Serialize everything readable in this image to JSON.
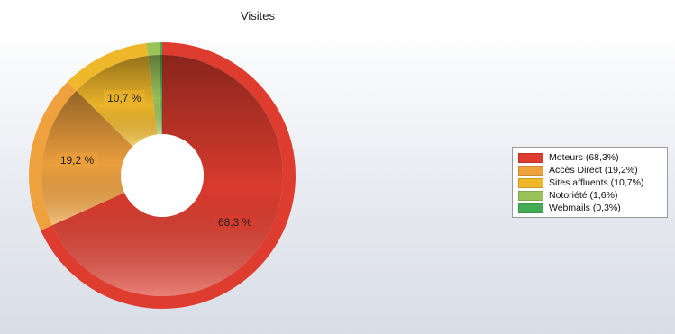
{
  "title": "Visites",
  "chart_data": {
    "type": "pie",
    "style": "donut",
    "series": [
      {
        "name": "Moteurs",
        "value": 68.3,
        "color": "#dd3c2e",
        "label": "68,3 %",
        "legend": "Moteurs  (68,3%)"
      },
      {
        "name": "Accès Direct",
        "value": 19.2,
        "color": "#efa13e",
        "label": "19,2 %",
        "legend": "Accès Direct  (19,2%)"
      },
      {
        "name": "Sites affluents",
        "value": 10.7,
        "color": "#efb72a",
        "label": "10,7 %",
        "legend": "Sites affluents  (10,7%)"
      },
      {
        "name": "Notoriété",
        "value": 1.6,
        "color": "#9cc35a",
        "label": "",
        "legend": "Notoriété  (1,6%)"
      },
      {
        "name": "Webmails",
        "value": 0.3,
        "color": "#43ad55",
        "label": "",
        "legend": "Webmails  (0,3%)"
      }
    ],
    "legend_position": "right"
  }
}
